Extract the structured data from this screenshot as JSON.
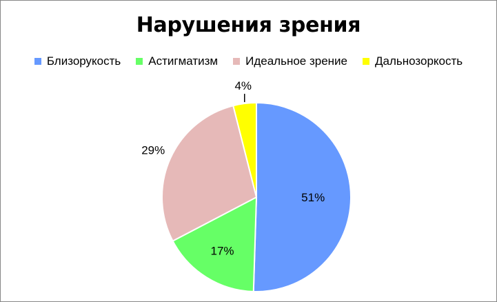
{
  "chart_data": {
    "type": "pie",
    "title": "Нарушения зрения",
    "legend_position": "top",
    "slices": [
      {
        "name": "Близорукость",
        "value": 51,
        "label": "51%",
        "color": "#6699FF"
      },
      {
        "name": "Астигматизм",
        "value": 17,
        "label": "17%",
        "color": "#66FF66"
      },
      {
        "name": "Идеальное зрение",
        "value": 29,
        "label": "29%",
        "color": "#E6B9B8"
      },
      {
        "name": "Дальнозоркость",
        "value": 4,
        "label": "4%",
        "color": "#FFFF00"
      }
    ]
  }
}
